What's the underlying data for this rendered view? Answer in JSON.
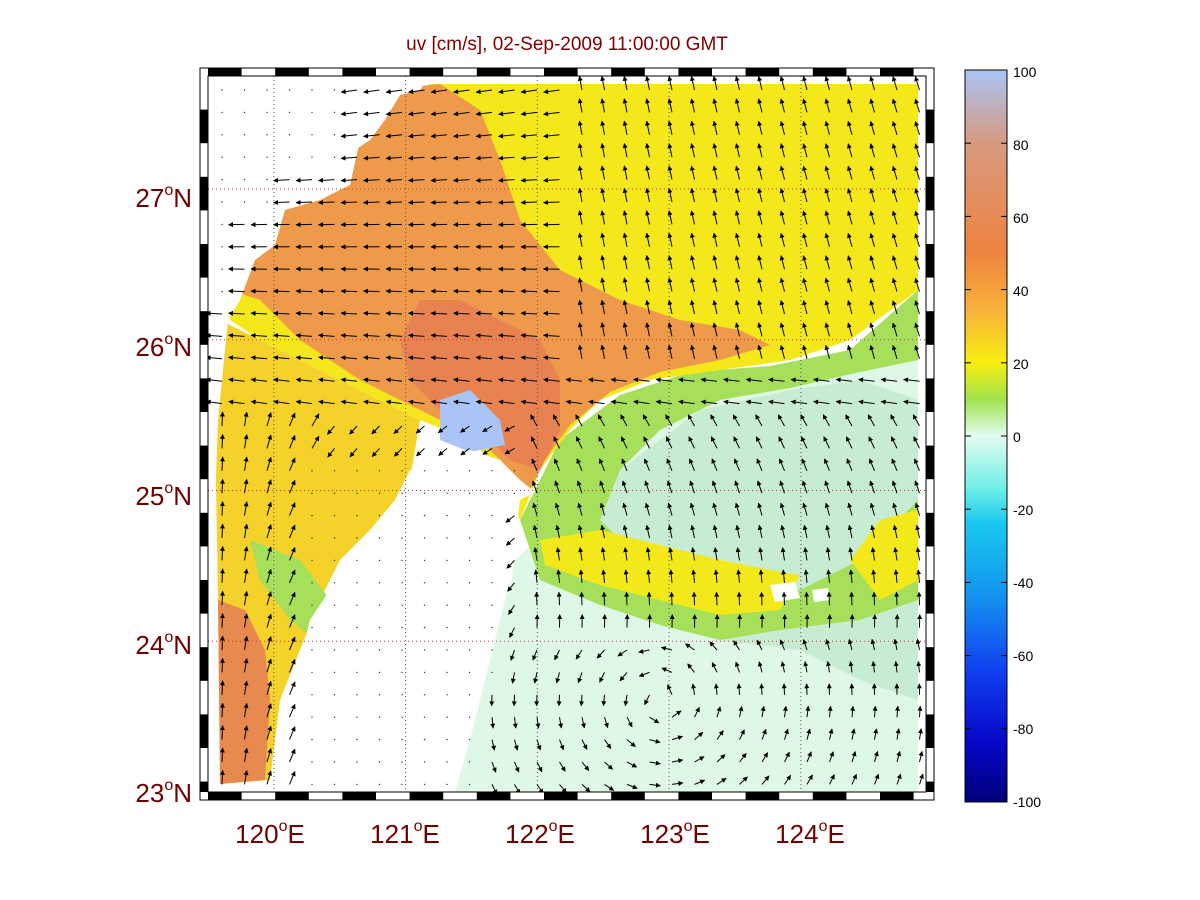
{
  "title": "uv [cm/s], 02-Sep-2009 11:00:00 GMT",
  "map": {
    "lon_range": [
      119.5,
      124.95
    ],
    "lat_range": [
      23.0,
      27.75
    ],
    "lat_ticks": [
      {
        "value": 23,
        "num": "23",
        "deg": "o",
        "hemi": "N"
      },
      {
        "value": 24,
        "num": "24",
        "deg": "o",
        "hemi": "N"
      },
      {
        "value": 25,
        "num": "25",
        "deg": "o",
        "hemi": "N"
      },
      {
        "value": 26,
        "num": "26",
        "deg": "o",
        "hemi": "N"
      },
      {
        "value": 27,
        "num": "27",
        "deg": "o",
        "hemi": "N"
      }
    ],
    "lon_ticks": [
      {
        "value": 120,
        "num": "120",
        "deg": "o",
        "hemi": "E"
      },
      {
        "value": 121,
        "num": "121",
        "deg": "o",
        "hemi": "E"
      },
      {
        "value": 122,
        "num": "122",
        "deg": "o",
        "hemi": "E"
      },
      {
        "value": 123,
        "num": "123",
        "deg": "o",
        "hemi": "E"
      },
      {
        "value": 124,
        "num": "124",
        "deg": "o",
        "hemi": "E"
      }
    ],
    "grid": true,
    "land_color": "#ffffff",
    "grid_color": "#cc3333"
  },
  "colorbar": {
    "min": -100,
    "max": 100,
    "ticks": [
      "100",
      "80",
      "60",
      "40",
      "20",
      "0",
      "-20",
      "-40",
      "-60",
      "-80",
      "-100"
    ],
    "colormap": "jet-like: dark blue (-100) → cyan (-20) → pale (0) → green/yellow (20) → orange (60) → pale blue (100)"
  }
}
